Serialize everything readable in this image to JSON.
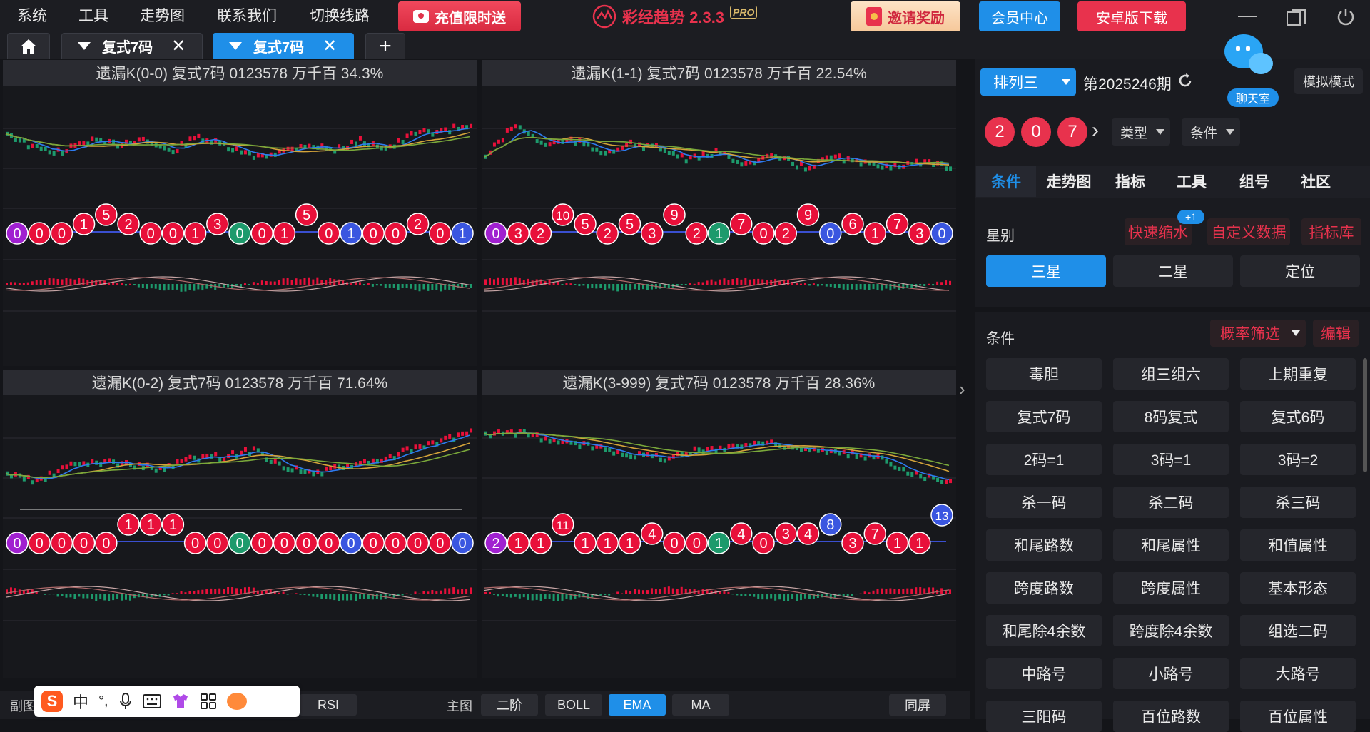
{
  "menu": {
    "items": [
      "系统",
      "工具",
      "走势图",
      "联系我们",
      "切换线路"
    ],
    "recharge_promo": "充值限时送",
    "app_name": "彩经趋势 2.3.3",
    "app_badge": "PRO",
    "invite_promo": "邀请奖励",
    "member_center": "会员中心",
    "android_download": "安卓版下载"
  },
  "tabs": [
    {
      "label": "复式7码",
      "active": false
    },
    {
      "label": "复式7码",
      "active": true
    }
  ],
  "panels": [
    {
      "title": "遗漏K(0-0)  复式7码  0123578  万千百  34.3%",
      "balls": [
        {
          "v": "0",
          "c": "p"
        },
        {
          "v": "0",
          "c": "r"
        },
        {
          "v": "0",
          "c": "r"
        },
        {
          "v": "1",
          "c": "r",
          "up": 1
        },
        {
          "v": "5",
          "c": "r",
          "up": 2
        },
        {
          "v": "2",
          "c": "r",
          "up": 1
        },
        {
          "v": "0",
          "c": "r"
        },
        {
          "v": "0",
          "c": "r"
        },
        {
          "v": "1",
          "c": "r"
        },
        {
          "v": "3",
          "c": "r",
          "up": 1
        },
        {
          "v": "0",
          "c": "g"
        },
        {
          "v": "0",
          "c": "r"
        },
        {
          "v": "1",
          "c": "r"
        },
        {
          "v": "5",
          "c": "r",
          "up": 2
        },
        {
          "v": "0",
          "c": "r"
        },
        {
          "v": "1",
          "c": "b"
        },
        {
          "v": "0",
          "c": "r"
        },
        {
          "v": "0",
          "c": "r"
        },
        {
          "v": "2",
          "c": "r",
          "up": 1
        },
        {
          "v": "0",
          "c": "r"
        },
        {
          "v": "1",
          "c": "b"
        }
      ]
    },
    {
      "title": "遗漏K(1-1)  复式7码  0123578  万千百  22.54%",
      "balls": [
        {
          "v": "0",
          "c": "p"
        },
        {
          "v": "3",
          "c": "r"
        },
        {
          "v": "2",
          "c": "r"
        },
        {
          "v": "10",
          "c": "r",
          "up": 2
        },
        {
          "v": "5",
          "c": "r",
          "up": 1
        },
        {
          "v": "2",
          "c": "r"
        },
        {
          "v": "5",
          "c": "r",
          "up": 1
        },
        {
          "v": "3",
          "c": "r"
        },
        {
          "v": "9",
          "c": "r",
          "up": 2
        },
        {
          "v": "2",
          "c": "r"
        },
        {
          "v": "1",
          "c": "g"
        },
        {
          "v": "7",
          "c": "r",
          "up": 1
        },
        {
          "v": "0",
          "c": "r"
        },
        {
          "v": "2",
          "c": "r"
        },
        {
          "v": "9",
          "c": "r",
          "up": 2
        },
        {
          "v": "0",
          "c": "b"
        },
        {
          "v": "6",
          "c": "r",
          "up": 1
        },
        {
          "v": "1",
          "c": "r"
        },
        {
          "v": "7",
          "c": "r",
          "up": 1
        },
        {
          "v": "3",
          "c": "r"
        },
        {
          "v": "0",
          "c": "b"
        }
      ]
    },
    {
      "title": "遗漏K(0-2)  复式7码  0123578  万千百  71.64%",
      "balls": [
        {
          "v": "0",
          "c": "p"
        },
        {
          "v": "0",
          "c": "r"
        },
        {
          "v": "0",
          "c": "r"
        },
        {
          "v": "0",
          "c": "r"
        },
        {
          "v": "0",
          "c": "r"
        },
        {
          "v": "1",
          "c": "r",
          "up": 2
        },
        {
          "v": "1",
          "c": "r",
          "up": 2
        },
        {
          "v": "1",
          "c": "r",
          "up": 2
        },
        {
          "v": "0",
          "c": "r"
        },
        {
          "v": "0",
          "c": "r"
        },
        {
          "v": "0",
          "c": "g"
        },
        {
          "v": "0",
          "c": "r"
        },
        {
          "v": "0",
          "c": "r"
        },
        {
          "v": "0",
          "c": "r"
        },
        {
          "v": "0",
          "c": "r"
        },
        {
          "v": "0",
          "c": "b"
        },
        {
          "v": "0",
          "c": "r"
        },
        {
          "v": "0",
          "c": "r"
        },
        {
          "v": "0",
          "c": "r"
        },
        {
          "v": "0",
          "c": "r"
        },
        {
          "v": "0",
          "c": "b"
        }
      ]
    },
    {
      "title": "遗漏K(3-999)  复式7码  0123578  万千百  28.36%",
      "balls": [
        {
          "v": "2",
          "c": "p"
        },
        {
          "v": "1",
          "c": "r"
        },
        {
          "v": "1",
          "c": "r"
        },
        {
          "v": "11",
          "c": "r",
          "up": 2
        },
        {
          "v": "1",
          "c": "r"
        },
        {
          "v": "1",
          "c": "r"
        },
        {
          "v": "1",
          "c": "r"
        },
        {
          "v": "4",
          "c": "r",
          "up": 1
        },
        {
          "v": "0",
          "c": "r"
        },
        {
          "v": "0",
          "c": "r"
        },
        {
          "v": "1",
          "c": "g"
        },
        {
          "v": "4",
          "c": "r",
          "up": 1
        },
        {
          "v": "0",
          "c": "r"
        },
        {
          "v": "3",
          "c": "r",
          "up": 1
        },
        {
          "v": "4",
          "c": "r",
          "up": 1
        },
        {
          "v": "8",
          "c": "b",
          "up": 2
        },
        {
          "v": "3",
          "c": "r"
        },
        {
          "v": "7",
          "c": "r",
          "up": 1
        },
        {
          "v": "1",
          "c": "r"
        },
        {
          "v": "1",
          "c": "r"
        },
        {
          "v": "13",
          "c": "b",
          "up": 3
        }
      ]
    }
  ],
  "bottom": {
    "sub_chart_label": "副图",
    "rsi": "RSI",
    "main_chart_label": "主图",
    "btn_second_order": "二阶",
    "btn_boll": "BOLL",
    "btn_ema": "EMA",
    "btn_ma": "MA",
    "btn_same_screen": "同屏",
    "ime_chinese": "中"
  },
  "right": {
    "lottery": "排列三",
    "period": "第2025246期",
    "chat_room": "聊天室",
    "simulate_mode": "模拟模式",
    "balls": [
      "2",
      "0",
      "7"
    ],
    "type_dropdown": "类型",
    "condition_dropdown": "条件",
    "tabs": [
      "条件",
      "走势图",
      "指标",
      "工具",
      "组号",
      "社区"
    ],
    "star_label": "星别",
    "quick_shrink": "快速缩水",
    "quick_shrink_badge": "+1",
    "custom_data": "自定义数据",
    "indicator_lib": "指标库",
    "star_options": [
      "三星",
      "二星",
      "定位"
    ],
    "conditions_label": "条件",
    "prob_filter": "概率筛选",
    "edit": "编辑",
    "condition_buttons": [
      "毒胆",
      "组三组六",
      "上期重复",
      "复式7码",
      "8码复式",
      "复式6码",
      "2码=1",
      "3码=1",
      "3码=2",
      "杀一码",
      "杀二码",
      "杀三码",
      "和尾路数",
      "和尾属性",
      "和值属性",
      "跨度路数",
      "跨度属性",
      "基本形态",
      "和尾除4余数",
      "跨度除4余数",
      "组选二码",
      "中路号",
      "小路号",
      "大路号",
      "三阳码",
      "百位路数",
      "百位属性"
    ]
  },
  "colors": {
    "accent_blue": "#1f8fe8",
    "red": "#e8324d",
    "green": "#1d9a6c",
    "purple": "#a020d0",
    "ball_blue": "#3a56e0"
  }
}
